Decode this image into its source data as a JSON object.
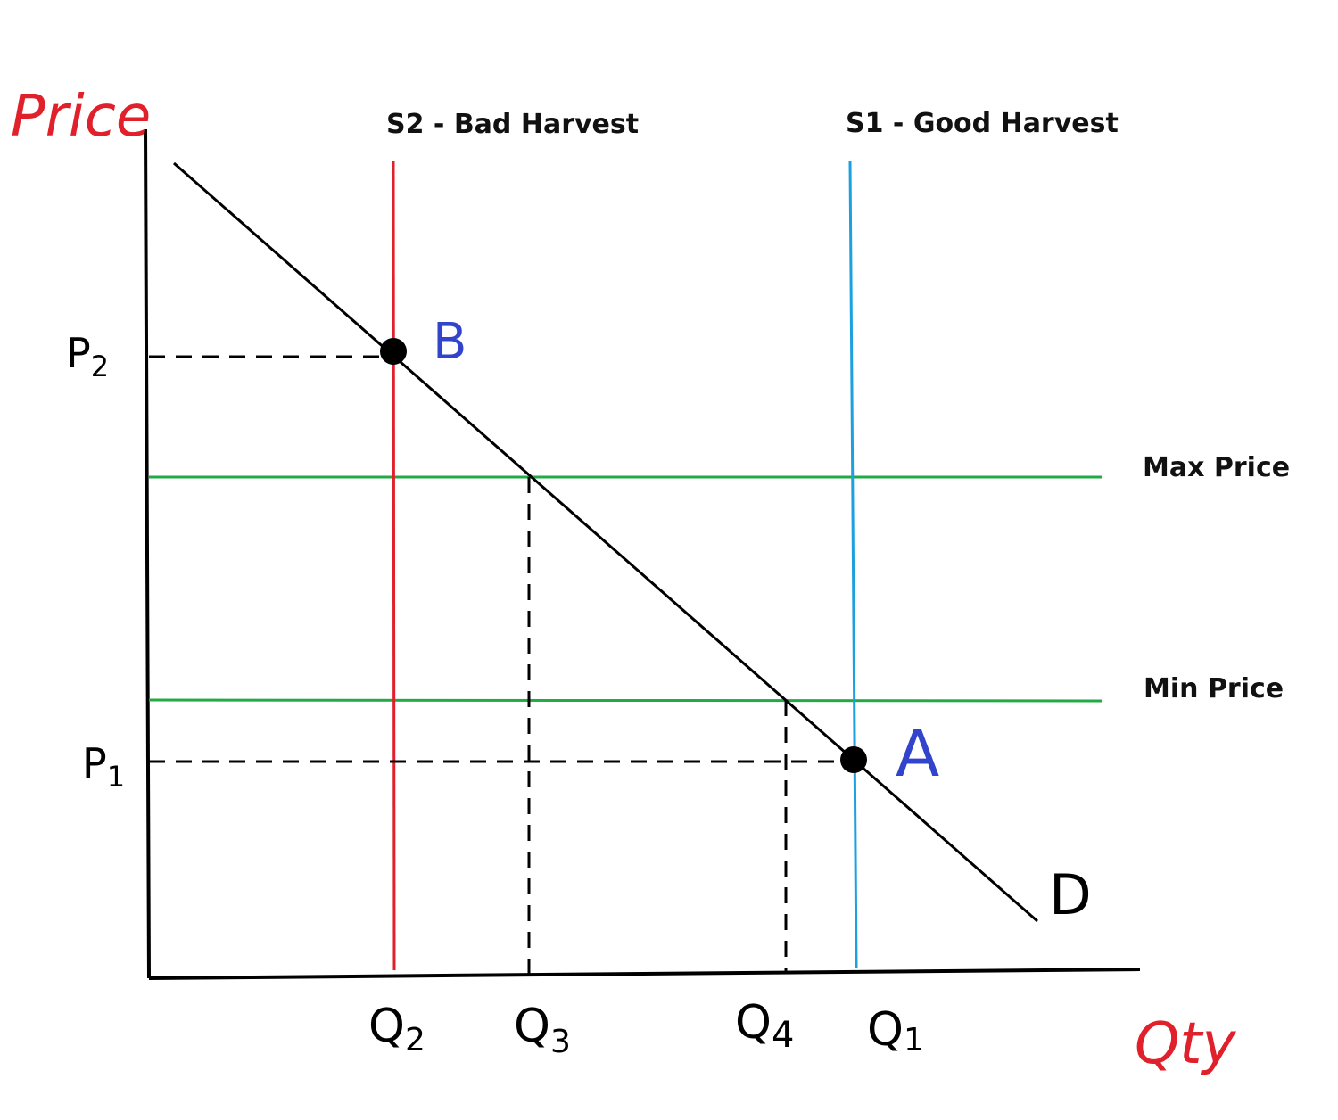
{
  "axes": {
    "y_label": "Price",
    "x_label": "Qty"
  },
  "supply_curves": [
    {
      "label": "S2 - Bad Harvest"
    },
    {
      "label": "S1 - Good Harvest"
    }
  ],
  "price_controls": [
    {
      "label": "Max Price"
    },
    {
      "label": "Min Price"
    }
  ],
  "demand": {
    "label": "D"
  },
  "points": [
    {
      "label": "B"
    },
    {
      "label": "A"
    }
  ],
  "price_levels": [
    {
      "main": "P",
      "sub": "2"
    },
    {
      "main": "P",
      "sub": "1"
    }
  ],
  "quantity_levels": [
    {
      "main": "Q",
      "sub": "2"
    },
    {
      "main": "Q",
      "sub": "3"
    },
    {
      "main": "Q",
      "sub": "4"
    },
    {
      "main": "Q",
      "sub": "1"
    }
  ]
}
